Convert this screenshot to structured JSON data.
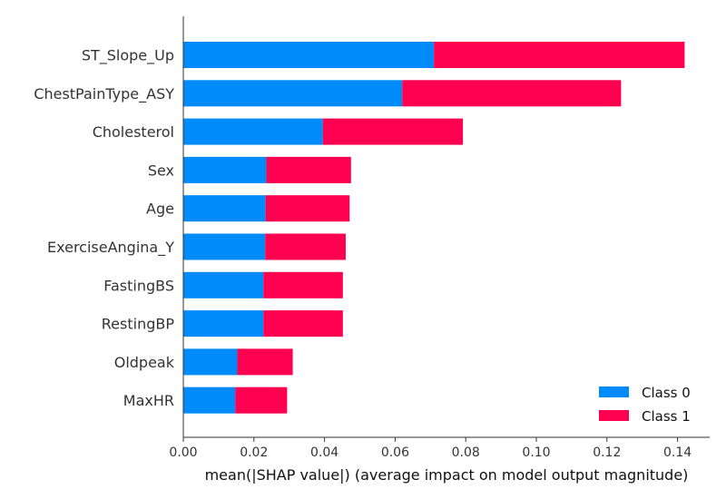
{
  "chart_data": {
    "type": "bar",
    "orientation": "horizontal",
    "stacked": true,
    "categories": [
      "ST_Slope_Up",
      "ChestPainType_ASY",
      "Cholesterol",
      "Sex",
      "Age",
      "ExerciseAngina_Y",
      "FastingBS",
      "RestingBP",
      "Oldpeak",
      "MaxHR"
    ],
    "series": [
      {
        "name": "Class 0",
        "color": "#008bfb",
        "values": [
          0.071,
          0.062,
          0.0395,
          0.0235,
          0.0233,
          0.0232,
          0.0227,
          0.0227,
          0.0153,
          0.0147
        ]
      },
      {
        "name": "Class 1",
        "color": "#ff0051",
        "values": [
          0.071,
          0.062,
          0.0397,
          0.024,
          0.0238,
          0.0228,
          0.0225,
          0.0225,
          0.0157,
          0.0147
        ]
      }
    ],
    "xlabel": "mean(|SHAP value|) (average impact on model output magnitude)",
    "ylabel": "",
    "title": "",
    "xlim": [
      0,
      0.149
    ],
    "xticks": [
      "0.00",
      "0.02",
      "0.04",
      "0.06",
      "0.08",
      "0.10",
      "0.12",
      "0.14"
    ],
    "xtick_values": [
      0,
      0.02,
      0.04,
      0.06,
      0.08,
      0.1,
      0.12,
      0.14
    ],
    "grid": false,
    "legend_position": "bottom-right"
  }
}
